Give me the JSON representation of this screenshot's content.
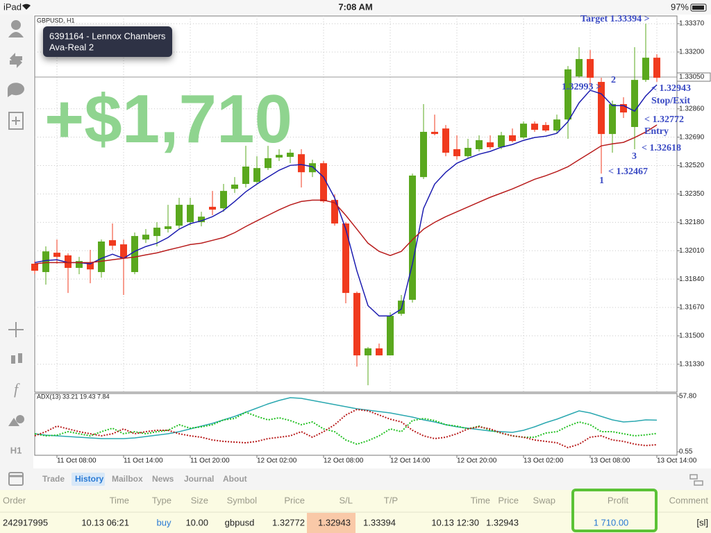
{
  "status_bar": {
    "device": "iPad",
    "time": "7:08 AM",
    "battery": "97%"
  },
  "account": {
    "login": "6391164 - Lennox Chambers",
    "server": "Ava-Real 2"
  },
  "profit_banner": "+$1,710",
  "sidebar_label": "H1",
  "chart_data": [
    {
      "type": "candlestick",
      "title": "GBPUSD, H1",
      "up_color": "#5aa81e",
      "down_color": "#f03a1e",
      "open": [
        1.31932,
        1.31882,
        1.31998,
        1.31982,
        1.31907,
        1.3194,
        1.31882,
        1.32073,
        1.32048,
        1.31882,
        1.32077,
        1.32098,
        1.3214,
        1.3216,
        1.32181,
        1.32181,
        1.32273,
        1.32264,
        1.32381,
        1.3241,
        1.32422,
        1.32505,
        1.32568,
        1.32572,
        1.32588,
        1.3248,
        1.32534,
        1.32314,
        1.32173,
        1.31757,
        1.31383,
        1.31425,
        1.31383,
        1.31632,
        1.31716,
        1.32451,
        1.32722,
        1.32742,
        1.32618,
        1.32576,
        1.32618,
        1.32659,
        1.3263,
        1.32701,
        1.32688,
        1.32771,
        1.32763,
        1.3273,
        1.32796,
        1.33054,
        1.33158,
        1.33021,
        1.32709,
        1.32888,
        1.32751,
        1.33033,
        1.33166
      ],
      "high": [
        1.31952,
        1.32036,
        1.32077,
        1.31994,
        1.31973,
        1.32015,
        1.32077,
        1.32173,
        1.32077,
        1.32119,
        1.3214,
        1.32181,
        1.32285,
        1.32327,
        1.32327,
        1.32243,
        1.32368,
        1.3241,
        1.32451,
        1.32638,
        1.32576,
        1.32638,
        1.32618,
        1.32618,
        1.32618,
        1.32555,
        1.32547,
        1.32347,
        1.32181,
        1.31765,
        1.31433,
        1.31454,
        1.31641,
        1.31745,
        1.32472,
        1.32888,
        1.32825,
        1.32763,
        1.32701,
        1.3268,
        1.32701,
        1.32701,
        1.32722,
        1.32742,
        1.32784,
        1.32784,
        1.3278,
        1.32825,
        1.33116,
        1.33229,
        1.33212,
        1.33046,
        1.32909,
        1.32929,
        1.33229,
        1.3337,
        1.33187
      ],
      "low": [
        1.31869,
        1.31807,
        1.31932,
        1.31757,
        1.31869,
        1.31815,
        1.31849,
        1.32015,
        1.31745,
        1.31869,
        1.32056,
        1.32036,
        1.32119,
        1.3214,
        1.3216,
        1.32156,
        1.32223,
        1.32243,
        1.32356,
        1.32389,
        1.3241,
        1.32493,
        1.32547,
        1.32534,
        1.32389,
        1.32451,
        1.32297,
        1.3216,
        1.31695,
        1.31316,
        1.31204,
        1.31383,
        1.31383,
        1.3162,
        1.31699,
        1.32439,
        1.32701,
        1.32576,
        1.32555,
        1.32564,
        1.32605,
        1.32618,
        1.32618,
        1.32659,
        1.3268,
        1.32722,
        1.32722,
        1.32713,
        1.3268,
        1.33046,
        1.32992,
        1.32472,
        1.32597,
        1.32805,
        1.32618,
        1.33021,
        1.33021
      ],
      "close": [
        1.3189,
        1.32006,
        1.31973,
        1.31907,
        1.31948,
        1.31898,
        1.32065,
        1.3204,
        1.31965,
        1.32098,
        1.32106,
        1.32148,
        1.32156,
        1.32285,
        1.32285,
        1.32214,
        1.32256,
        1.32368,
        1.32406,
        1.32514,
        1.32505,
        1.32564,
        1.32584,
        1.32597,
        1.3248,
        1.32534,
        1.32306,
        1.32173,
        1.31757,
        1.31383,
        1.31425,
        1.31383,
        1.3162,
        1.31711,
        1.3246,
        1.32722,
        1.32709,
        1.32597,
        1.32576,
        1.32626,
        1.32672,
        1.3263,
        1.32701,
        1.32667,
        1.32771,
        1.32734,
        1.3273,
        1.32796,
        1.33096,
        1.33158,
        1.33046,
        1.32709,
        1.32888,
        1.32838,
        1.33033,
        1.33166,
        1.33046
      ],
      "series": [
        {
          "color": "#1c1cb0",
          "values": [
            1.31939,
            1.31951,
            1.31956,
            1.31939,
            1.31939,
            1.31931,
            1.31964,
            1.31989,
            1.31964,
            1.32006,
            1.32035,
            1.32055,
            1.32089,
            1.32139,
            1.32172,
            1.32189,
            1.32214,
            1.32251,
            1.32305,
            1.32363,
            1.32409,
            1.32451,
            1.32492,
            1.32521,
            1.32526,
            1.32513,
            1.32451,
            1.32326,
            1.32139,
            1.31889,
            1.31681,
            1.31619,
            1.31619,
            1.3166,
            1.31931,
            1.32263,
            1.32409,
            1.3248,
            1.32534,
            1.32563,
            1.32588,
            1.32605,
            1.3263,
            1.32646,
            1.32671,
            1.32688,
            1.32696,
            1.32713,
            1.32783,
            1.32896,
            1.32971,
            1.3295,
            1.32879,
            1.32879,
            1.32846,
            1.32937,
            1.33004
          ]
        },
        {
          "color": "#b81c1c",
          "values": [
            1.31931,
            1.31939,
            1.31939,
            1.31939,
            1.31939,
            1.31939,
            1.31947,
            1.31956,
            1.31964,
            1.31972,
            1.31985,
            1.31997,
            1.32014,
            1.3203,
            1.32047,
            1.32055,
            1.32072,
            1.32089,
            1.32118,
            1.32155,
            1.32189,
            1.32222,
            1.32255,
            1.32284,
            1.32305,
            1.32313,
            1.32313,
            1.32297,
            1.32222,
            1.32139,
            1.32055,
            1.32006,
            1.31981,
            1.32006,
            1.32076,
            1.32139,
            1.3218,
            1.32214,
            1.32243,
            1.32272,
            1.32301,
            1.3233,
            1.32355,
            1.3238,
            1.32409,
            1.32438,
            1.32459,
            1.32484,
            1.32513,
            1.32555,
            1.32596,
            1.32638,
            1.3265,
            1.32659,
            1.32688,
            1.32721,
            1.32763
          ]
        }
      ],
      "ylim": [
        1.31163,
        1.33416
      ],
      "yticks": [
        {
          "value": 1.3337,
          "label": "1.33370"
        },
        {
          "value": 1.332,
          "label": "1.33200"
        },
        {
          "value": 1.3286,
          "label": "1.32860"
        },
        {
          "value": 1.3269,
          "label": "1.32690"
        },
        {
          "value": 1.3252,
          "label": "1.32520"
        },
        {
          "value": 1.3235,
          "label": "1.32350"
        },
        {
          "value": 1.3218,
          "label": "1.32180"
        },
        {
          "value": 1.3201,
          "label": "1.32010"
        },
        {
          "value": 1.3184,
          "label": "1.31840"
        },
        {
          "value": 1.3167,
          "label": "1.31670"
        },
        {
          "value": 1.315,
          "label": "1.31500"
        },
        {
          "value": 1.3133,
          "label": "1.31330"
        }
      ],
      "last_price": {
        "value": 1.3305,
        "label": "1.33050"
      },
      "grid": true,
      "annotations": [
        "Target 1.33394 >",
        "1.32993 >",
        "2",
        "< 1.32943",
        "Stop/Exit",
        "< 1.32772",
        "Entry",
        "< 1.32618",
        "3",
        "1",
        "< 1.32467"
      ]
    },
    {
      "type": "line",
      "title": "ADX(13) 33.21 19.43 7.84",
      "categories": [
        null,
        null,
        "11 Oct 08:00",
        null,
        null,
        null,
        null,
        null,
        "11 Oct 14:00",
        null,
        null,
        null,
        null,
        null,
        "11 Oct 20:00",
        null,
        null,
        null,
        null,
        null,
        "12 Oct 02:00",
        null,
        null,
        null,
        null,
        null,
        "12 Oct 08:00",
        null,
        null,
        null,
        null,
        null,
        "12 Oct 14:00",
        null,
        null,
        null,
        null,
        null,
        "12 Oct 20:00",
        null,
        null,
        null,
        null,
        null,
        "13 Oct 02:00",
        null,
        null,
        null,
        null,
        null,
        "13 Oct 08:00",
        null,
        null,
        null,
        null,
        null,
        "13 Oct 14:00"
      ],
      "series": [
        {
          "color": "#2aa8b0",
          "dashed": false,
          "values": [
            19.16,
            17.73,
            17.01,
            16.3,
            15.58,
            14.86,
            14.15,
            14.15,
            14.15,
            14.86,
            16.3,
            17.73,
            19.16,
            21.3,
            24.17,
            27.03,
            29.89,
            33.47,
            37.05,
            41.34,
            45.63,
            49.93,
            53.51,
            56.37,
            55.65,
            53.51,
            51.36,
            49.21,
            47.07,
            44.92,
            43.49,
            42.06,
            40.63,
            38.48,
            36.33,
            33.47,
            31.32,
            28.46,
            26.31,
            24.88,
            23.45,
            22.02,
            21.3,
            20.59,
            22.74,
            26.31,
            30.61,
            34.19,
            38.48,
            42.77,
            40.63,
            37.05,
            33.47,
            31.32,
            32.04,
            33.47,
            33.21
          ]
        },
        {
          "color": "#22c022",
          "dashed": true,
          "values": [
            19.16,
            17.01,
            17.73,
            21.3,
            19.16,
            17.01,
            21.3,
            24.88,
            19.16,
            21.3,
            19.16,
            21.3,
            22.74,
            28.46,
            24.88,
            26.31,
            28.46,
            33.47,
            34.9,
            41.34,
            37.05,
            33.47,
            35.62,
            32.75,
            28.46,
            31.32,
            24.17,
            21.3,
            12.72,
            8.42,
            12.0,
            17.01,
            24.17,
            21.3,
            32.75,
            34.9,
            32.75,
            28.46,
            27.03,
            24.17,
            27.03,
            22.74,
            19.87,
            17.01,
            15.58,
            15.58,
            19.87,
            21.3,
            27.03,
            31.32,
            28.46,
            21.3,
            21.3,
            19.16,
            17.01,
            18.0,
            19.43
          ]
        },
        {
          "color": "#b81c1c",
          "dashed": true,
          "values": [
            17.01,
            21.3,
            27.03,
            24.17,
            21.3,
            19.16,
            17.01,
            19.16,
            24.17,
            19.16,
            21.3,
            22.74,
            22.74,
            19.16,
            17.01,
            15.58,
            12.72,
            11.29,
            10.57,
            9.85,
            11.29,
            14.15,
            15.58,
            17.01,
            21.3,
            15.58,
            21.3,
            28.46,
            38.48,
            44.2,
            42.77,
            38.48,
            34.19,
            31.32,
            22.74,
            17.01,
            14.15,
            15.58,
            19.16,
            24.17,
            26.31,
            24.17,
            19.87,
            17.01,
            15.58,
            12.72,
            11.29,
            9.85,
            4.85,
            8.42,
            15.58,
            17.01,
            12.72,
            11.29,
            8.42,
            6.99,
            7.84
          ]
        }
      ],
      "ylim": [
        -3.03,
        60.66
      ],
      "yticks": [
        {
          "value": 57.8,
          "label": "57.80"
        },
        0.55
      ]
    }
  ],
  "tabs": [
    "Trade",
    "History",
    "Mailbox",
    "News",
    "Journal",
    "About"
  ],
  "active_tab": 1,
  "table": {
    "columns": [
      "Order",
      "Time",
      "Type",
      "Size",
      "Symbol",
      "Price",
      "S/L",
      "T/P",
      "Time",
      "Price",
      "Swap",
      "Profit",
      "Comment"
    ],
    "rows": [
      [
        "242917995",
        "10.13 06:21",
        "buy",
        "10.00",
        "gbpusd",
        "1.32772",
        "1.32943",
        "1.33394",
        "10.13 12:30",
        "1.32943",
        null,
        "1 710.00",
        "[sl]"
      ]
    ]
  }
}
